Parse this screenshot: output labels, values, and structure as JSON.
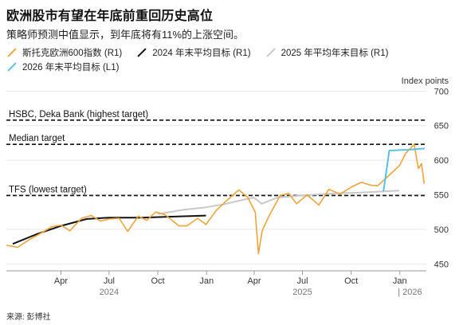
{
  "header": {
    "title": "欧洲股市有望在年底前重回历史高位",
    "subtitle": "策略师预测中值显示，到年底将有11%的上涨空间。"
  },
  "legend": [
    {
      "label": "斯托克欧洲600指数 (R1)",
      "color": "#f0a33a"
    },
    {
      "label": "2024 年末平均目标 (R1)",
      "color": "#111111"
    },
    {
      "label": "2025 年平均年末目标 (R1)",
      "color": "#c8c8c8"
    },
    {
      "label": "2026 年末平均目标 (L1)",
      "color": "#5bc0e8"
    }
  ],
  "source": "来源: 彭博社",
  "chart_data": {
    "type": "line",
    "ylabel": "Index points",
    "ylim": [
      440,
      705
    ],
    "yticks": [
      450,
      500,
      550,
      600,
      650,
      700
    ],
    "xlim": [
      "2023-12-20",
      "2026-02-20"
    ],
    "xticks": [
      {
        "date": "2024-04-01",
        "label": "Apr"
      },
      {
        "date": "2024-07-01",
        "label": "Jul"
      },
      {
        "date": "2024-10-01",
        "label": "Oct"
      },
      {
        "date": "2025-01-01",
        "label": "Jan"
      },
      {
        "date": "2025-04-01",
        "label": "Apr"
      },
      {
        "date": "2025-07-01",
        "label": "Jul"
      },
      {
        "date": "2025-10-01",
        "label": "Oct"
      },
      {
        "date": "2026-01-01",
        "label": "Jan"
      }
    ],
    "years": [
      {
        "label": "2024",
        "center": "2024-07-01"
      },
      {
        "label": "2025",
        "center": "2025-07-01"
      },
      {
        "label": "| 2026",
        "center": "2026-01-20"
      }
    ],
    "reference_lines": [
      {
        "label": "HSBC, Deka Bank (highest target)",
        "value": 658
      },
      {
        "label": "Median target",
        "value": 623
      },
      {
        "label": "TFS (lowest target)",
        "value": 549
      }
    ],
    "series": [
      {
        "name": "斯托克欧洲600指数 (R1)",
        "color": "#f0a33a",
        "points": [
          [
            "2023-12-20",
            477
          ],
          [
            "2024-01-10",
            474
          ],
          [
            "2024-02-01",
            485
          ],
          [
            "2024-02-20",
            493
          ],
          [
            "2024-03-15",
            504
          ],
          [
            "2024-04-01",
            506
          ],
          [
            "2024-04-18",
            498
          ],
          [
            "2024-05-10",
            516
          ],
          [
            "2024-05-28",
            520
          ],
          [
            "2024-06-15",
            512
          ],
          [
            "2024-07-01",
            515
          ],
          [
            "2024-07-20",
            516
          ],
          [
            "2024-08-05",
            497
          ],
          [
            "2024-08-25",
            519
          ],
          [
            "2024-09-10",
            513
          ],
          [
            "2024-09-27",
            525
          ],
          [
            "2024-10-15",
            521
          ],
          [
            "2024-11-10",
            505
          ],
          [
            "2024-11-25",
            505
          ],
          [
            "2024-12-15",
            516
          ],
          [
            "2024-12-31",
            507
          ],
          [
            "2025-01-20",
            528
          ],
          [
            "2025-02-10",
            543
          ],
          [
            "2025-03-03",
            557
          ],
          [
            "2025-03-20",
            546
          ],
          [
            "2025-04-03",
            525
          ],
          [
            "2025-04-09",
            465
          ],
          [
            "2025-04-16",
            498
          ],
          [
            "2025-04-30",
            521
          ],
          [
            "2025-05-20",
            549
          ],
          [
            "2025-06-05",
            552
          ],
          [
            "2025-06-20",
            537
          ],
          [
            "2025-07-10",
            550
          ],
          [
            "2025-08-01",
            535
          ],
          [
            "2025-08-20",
            558
          ],
          [
            "2025-09-10",
            551
          ],
          [
            "2025-10-01",
            561
          ],
          [
            "2025-10-20",
            568
          ],
          [
            "2025-11-06",
            564
          ],
          [
            "2025-11-20",
            563
          ],
          [
            "2025-12-10",
            577
          ],
          [
            "2025-12-31",
            592
          ],
          [
            "2026-01-12",
            610
          ],
          [
            "2026-01-28",
            623
          ],
          [
            "2026-02-05",
            588
          ],
          [
            "2026-02-11",
            595
          ],
          [
            "2026-02-16",
            566
          ]
        ]
      },
      {
        "name": "2024 年末平均目标 (R1)",
        "color": "#111111",
        "points": [
          [
            "2024-01-01",
            479
          ],
          [
            "2024-02-15",
            493
          ],
          [
            "2024-04-01",
            505
          ],
          [
            "2024-05-20",
            515
          ],
          [
            "2024-07-01",
            517
          ],
          [
            "2024-09-01",
            517
          ],
          [
            "2024-10-15",
            518
          ],
          [
            "2024-12-31",
            520
          ]
        ]
      },
      {
        "name": "2025 年平均年末目标 (R1)",
        "color": "#c8c8c8",
        "points": [
          [
            "2024-10-01",
            522
          ],
          [
            "2024-11-15",
            528
          ],
          [
            "2024-12-31",
            532
          ],
          [
            "2025-02-01",
            536
          ],
          [
            "2025-03-01",
            541
          ],
          [
            "2025-03-31",
            546
          ],
          [
            "2025-04-15",
            537
          ],
          [
            "2025-05-15",
            546
          ],
          [
            "2025-07-01",
            549
          ],
          [
            "2025-09-01",
            552
          ],
          [
            "2025-10-15",
            553
          ],
          [
            "2025-12-31",
            556
          ]
        ]
      },
      {
        "name": "2026 年末平均目标 (L1)",
        "color": "#5bc0e8",
        "points": [
          [
            "2025-12-01",
            555
          ],
          [
            "2025-12-12",
            614
          ],
          [
            "2026-01-15",
            615
          ],
          [
            "2026-02-17",
            617
          ]
        ]
      }
    ]
  }
}
